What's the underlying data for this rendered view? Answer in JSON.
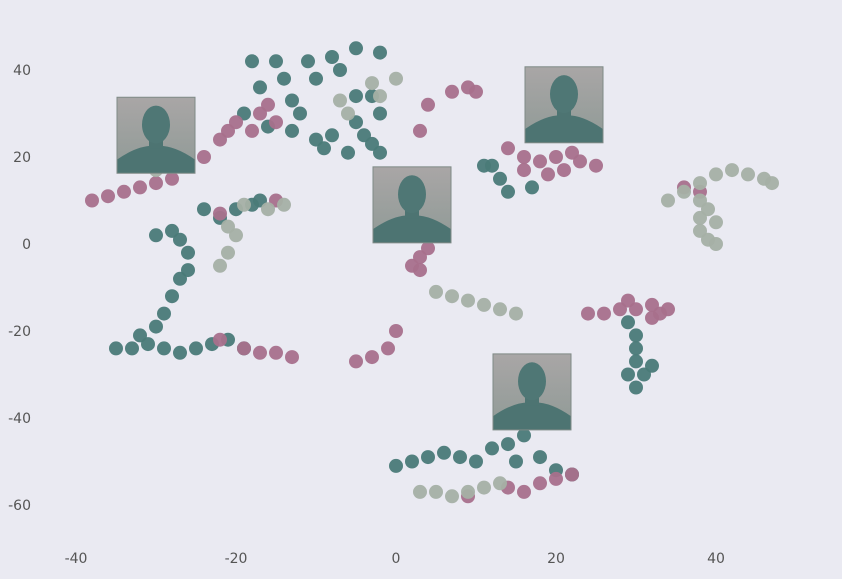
{
  "chart_data": {
    "type": "scatter",
    "title": "",
    "xlabel": "",
    "ylabel": "",
    "xlim": [
      -44,
      55
    ],
    "ylim": [
      -68,
      53
    ],
    "xticks": [
      -40,
      -20,
      0,
      20,
      40
    ],
    "yticks": [
      40,
      20,
      0,
      -20,
      -40,
      -60
    ],
    "grid": false,
    "legend": "none",
    "series_colors": {
      "teal": "#4a7a78",
      "pink": "#a8708c",
      "sage": "#a5b0a5"
    },
    "series": [
      {
        "color": "teal",
        "points": [
          [
            -18,
            42
          ],
          [
            -15,
            42
          ],
          [
            -11,
            42
          ],
          [
            -8,
            43
          ],
          [
            -5,
            45
          ],
          [
            -2,
            44
          ],
          [
            -14,
            38
          ],
          [
            -10,
            38
          ],
          [
            -7,
            40
          ],
          [
            -19,
            30
          ],
          [
            -16,
            27
          ],
          [
            -12,
            30
          ],
          [
            -13,
            26
          ],
          [
            -10,
            24
          ],
          [
            -9,
            22
          ],
          [
            -8,
            25
          ],
          [
            -6,
            21
          ],
          [
            -5,
            28
          ],
          [
            -3,
            23
          ],
          [
            -4,
            25
          ],
          [
            -2,
            21
          ],
          [
            -2,
            30
          ],
          [
            -3,
            34
          ],
          [
            -5,
            34
          ],
          [
            -17,
            36
          ],
          [
            -13,
            33
          ],
          [
            -30,
            2
          ],
          [
            -28,
            3
          ],
          [
            -27,
            1
          ],
          [
            -26,
            -2
          ],
          [
            -26,
            -6
          ],
          [
            -27,
            -8
          ],
          [
            -28,
            -12
          ],
          [
            -29,
            -16
          ],
          [
            -30,
            -19
          ],
          [
            -24,
            8
          ],
          [
            -22,
            6
          ],
          [
            -20,
            8
          ],
          [
            -18,
            9
          ],
          [
            -17,
            10
          ],
          [
            -35,
            -24
          ],
          [
            -33,
            -24
          ],
          [
            -31,
            -23
          ],
          [
            -29,
            -24
          ],
          [
            -27,
            -25
          ],
          [
            -25,
            -24
          ],
          [
            -23,
            -23
          ],
          [
            -21,
            -22
          ],
          [
            -19,
            -24
          ],
          [
            -32,
            -21
          ],
          [
            11,
            18
          ],
          [
            13,
            15
          ],
          [
            14,
            12
          ],
          [
            17,
            13
          ],
          [
            12,
            18
          ],
          [
            29,
            -18
          ],
          [
            30,
            -21
          ],
          [
            30,
            -24
          ],
          [
            30,
            -27
          ],
          [
            31,
            -30
          ],
          [
            29,
            -30
          ],
          [
            30,
            -33
          ],
          [
            32,
            -28
          ],
          [
            0,
            -51
          ],
          [
            2,
            -50
          ],
          [
            4,
            -49
          ],
          [
            6,
            -48
          ],
          [
            8,
            -49
          ],
          [
            10,
            -50
          ],
          [
            12,
            -47
          ],
          [
            14,
            -46
          ],
          [
            16,
            -44
          ],
          [
            18,
            -49
          ],
          [
            20,
            -52
          ],
          [
            22,
            -53
          ],
          [
            15,
            -50
          ]
        ]
      },
      {
        "color": "pink",
        "points": [
          [
            -38,
            10
          ],
          [
            -36,
            11
          ],
          [
            -34,
            12
          ],
          [
            -32,
            13
          ],
          [
            -30,
            14
          ],
          [
            -28,
            15
          ],
          [
            -26,
            18
          ],
          [
            -24,
            20
          ],
          [
            -22,
            24
          ],
          [
            -21,
            26
          ],
          [
            -20,
            28
          ],
          [
            -17,
            30
          ],
          [
            -16,
            32
          ],
          [
            -15,
            28
          ],
          [
            -18,
            26
          ],
          [
            -22,
            7
          ],
          [
            -15,
            10
          ],
          [
            -13,
            -26
          ],
          [
            -15,
            -25
          ],
          [
            -17,
            -25
          ],
          [
            -19,
            -24
          ],
          [
            -22,
            -22
          ],
          [
            -5,
            -27
          ],
          [
            -3,
            -26
          ],
          [
            -1,
            -24
          ],
          [
            0,
            -20
          ],
          [
            2,
            -5
          ],
          [
            3,
            -3
          ],
          [
            4,
            -1
          ],
          [
            3,
            -6
          ],
          [
            5,
            3
          ],
          [
            6,
            7
          ],
          [
            3,
            26
          ],
          [
            4,
            32
          ],
          [
            7,
            35
          ],
          [
            9,
            36
          ],
          [
            10,
            35
          ],
          [
            14,
            22
          ],
          [
            16,
            20
          ],
          [
            18,
            19
          ],
          [
            20,
            20
          ],
          [
            22,
            21
          ],
          [
            23,
            19
          ],
          [
            16,
            17
          ],
          [
            19,
            16
          ],
          [
            21,
            17
          ],
          [
            25,
            18
          ],
          [
            24,
            -16
          ],
          [
            26,
            -16
          ],
          [
            28,
            -15
          ],
          [
            30,
            -15
          ],
          [
            32,
            -14
          ],
          [
            34,
            -15
          ],
          [
            29,
            -13
          ],
          [
            32,
            -17
          ],
          [
            14,
            -56
          ],
          [
            16,
            -57
          ],
          [
            18,
            -55
          ],
          [
            20,
            -54
          ],
          [
            22,
            -53
          ],
          [
            9,
            -58
          ],
          [
            33,
            -16
          ],
          [
            36,
            13
          ],
          [
            38,
            12
          ]
        ]
      },
      {
        "color": "sage",
        "points": [
          [
            -30,
            17
          ],
          [
            -28,
            18
          ],
          [
            -26,
            19
          ],
          [
            -22,
            -5
          ],
          [
            -21,
            -2
          ],
          [
            -20,
            2
          ],
          [
            -21,
            4
          ],
          [
            -19,
            9
          ],
          [
            -16,
            8
          ],
          [
            -14,
            9
          ],
          [
            -3,
            37
          ],
          [
            0,
            38
          ],
          [
            -2,
            34
          ],
          [
            -7,
            33
          ],
          [
            -6,
            30
          ],
          [
            5,
            -11
          ],
          [
            7,
            -12
          ],
          [
            9,
            -13
          ],
          [
            11,
            -14
          ],
          [
            13,
            -15
          ],
          [
            15,
            -16
          ],
          [
            3,
            -57
          ],
          [
            5,
            -57
          ],
          [
            7,
            -58
          ],
          [
            9,
            -57
          ],
          [
            11,
            -56
          ],
          [
            13,
            -55
          ],
          [
            34,
            10
          ],
          [
            36,
            12
          ],
          [
            38,
            14
          ],
          [
            40,
            16
          ],
          [
            42,
            17
          ],
          [
            44,
            16
          ],
          [
            46,
            15
          ],
          [
            47,
            14
          ],
          [
            38,
            6
          ],
          [
            38,
            3
          ],
          [
            39,
            1
          ],
          [
            40,
            0
          ],
          [
            39,
            8
          ],
          [
            40,
            5
          ],
          [
            38,
            10
          ]
        ]
      }
    ],
    "image_thumbnails": [
      {
        "center": [
          -30,
          25
        ],
        "content": "face-portrait"
      },
      {
        "center": [
          2,
          9
        ],
        "content": "face-portrait"
      },
      {
        "center": [
          21,
          32
        ],
        "content": "face-portrait"
      },
      {
        "center": [
          17,
          -34
        ],
        "content": "face-portrait"
      }
    ]
  }
}
